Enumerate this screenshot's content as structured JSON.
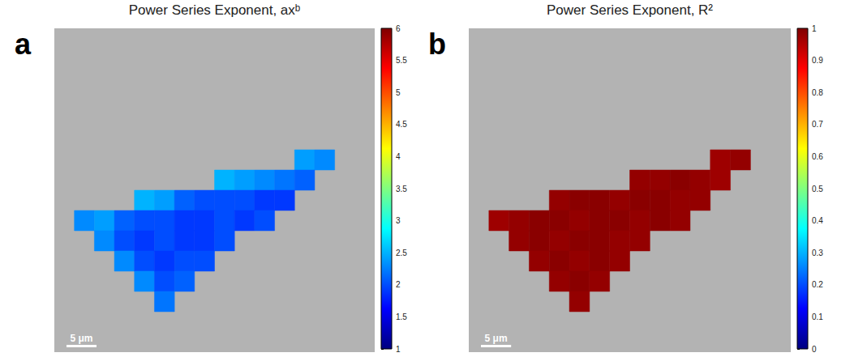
{
  "chart_data": [
    {
      "type": "heatmap",
      "panel": "a",
      "title": "Power Series Exponent, axᵇ",
      "xlim": [
        0,
        53.4
      ],
      "ylim": [
        0,
        53.4
      ],
      "cells": [
        [
          null,
          null,
          null,
          null,
          null,
          null,
          null,
          null,
          null,
          null,
          null,
          null,
          null,
          null,
          null,
          null
        ],
        [
          null,
          null,
          null,
          null,
          null,
          null,
          null,
          null,
          null,
          null,
          null,
          null,
          null,
          null,
          null,
          null
        ],
        [
          null,
          null,
          null,
          null,
          null,
          null,
          null,
          null,
          null,
          null,
          null,
          null,
          null,
          null,
          null,
          null
        ],
        [
          null,
          null,
          null,
          null,
          null,
          null,
          null,
          null,
          null,
          null,
          null,
          null,
          null,
          null,
          null,
          null
        ],
        [
          null,
          null,
          null,
          null,
          null,
          null,
          null,
          null,
          null,
          null,
          null,
          null,
          null,
          null,
          null,
          null
        ],
        [
          null,
          null,
          null,
          null,
          null,
          null,
          null,
          null,
          null,
          null,
          null,
          null,
          null,
          null,
          null,
          null
        ],
        [
          null,
          null,
          null,
          null,
          null,
          null,
          null,
          null,
          null,
          null,
          null,
          null,
          2.4,
          2.3,
          null,
          null
        ],
        [
          null,
          null,
          null,
          null,
          null,
          null,
          null,
          null,
          2.5,
          2.4,
          2.3,
          2.2,
          2.1,
          null,
          null,
          null
        ],
        [
          null,
          null,
          null,
          null,
          2.5,
          2.4,
          2.1,
          2.0,
          2.0,
          2.0,
          1.9,
          1.9,
          null,
          null,
          null,
          null
        ],
        [
          null,
          2.3,
          2.4,
          2.1,
          2.0,
          2.0,
          1.9,
          1.9,
          2.0,
          1.9,
          2.0,
          null,
          null,
          null,
          null,
          null
        ],
        [
          null,
          null,
          2.3,
          2.0,
          1.9,
          2.0,
          1.9,
          1.9,
          2.0,
          null,
          null,
          null,
          null,
          null,
          null,
          null
        ],
        [
          null,
          null,
          null,
          2.3,
          2.0,
          1.9,
          2.0,
          2.0,
          null,
          null,
          null,
          null,
          null,
          null,
          null,
          null
        ],
        [
          null,
          null,
          null,
          null,
          2.3,
          2.0,
          2.1,
          null,
          null,
          null,
          null,
          null,
          null,
          null,
          null,
          null
        ],
        [
          null,
          null,
          null,
          null,
          null,
          2.2,
          null,
          null,
          null,
          null,
          null,
          null,
          null,
          null,
          null,
          null
        ],
        [
          null,
          null,
          null,
          null,
          null,
          null,
          null,
          null,
          null,
          null,
          null,
          null,
          null,
          null,
          null,
          null
        ],
        [
          null,
          null,
          null,
          null,
          null,
          null,
          null,
          null,
          null,
          null,
          null,
          null,
          null,
          null,
          null,
          null
        ]
      ],
      "color_range": [
        1,
        6
      ],
      "color_ticks": [
        1,
        1.5,
        2,
        2.5,
        3,
        3.5,
        4,
        4.5,
        5,
        5.5,
        6
      ],
      "scale_bar": {
        "length": 5,
        "label": "5 μm"
      }
    },
    {
      "type": "heatmap",
      "panel": "b",
      "title": "Power Series Exponent, R²",
      "xlim": [
        0,
        53.4
      ],
      "ylim": [
        0,
        53.4
      ],
      "cells": [
        [
          null,
          null,
          null,
          null,
          null,
          null,
          null,
          null,
          null,
          null,
          null,
          null,
          null,
          null,
          null,
          null
        ],
        [
          null,
          null,
          null,
          null,
          null,
          null,
          null,
          null,
          null,
          null,
          null,
          null,
          null,
          null,
          null,
          null
        ],
        [
          null,
          null,
          null,
          null,
          null,
          null,
          null,
          null,
          null,
          null,
          null,
          null,
          null,
          null,
          null,
          null
        ],
        [
          null,
          null,
          null,
          null,
          null,
          null,
          null,
          null,
          null,
          null,
          null,
          null,
          null,
          null,
          null,
          null
        ],
        [
          null,
          null,
          null,
          null,
          null,
          null,
          null,
          null,
          null,
          null,
          null,
          null,
          null,
          null,
          null,
          null
        ],
        [
          null,
          null,
          null,
          null,
          null,
          null,
          null,
          null,
          null,
          null,
          null,
          null,
          null,
          null,
          null,
          null
        ],
        [
          null,
          null,
          null,
          null,
          null,
          null,
          null,
          null,
          null,
          null,
          null,
          null,
          0.97,
          0.98,
          null,
          null
        ],
        [
          null,
          null,
          null,
          null,
          null,
          null,
          null,
          null,
          0.98,
          0.98,
          0.99,
          0.98,
          0.97,
          null,
          null,
          null
        ],
        [
          null,
          null,
          null,
          null,
          0.98,
          0.99,
          0.99,
          0.98,
          0.99,
          0.99,
          0.98,
          0.98,
          null,
          null,
          null,
          null
        ],
        [
          null,
          0.97,
          0.98,
          0.99,
          0.99,
          0.98,
          0.99,
          0.99,
          0.98,
          0.99,
          0.98,
          null,
          null,
          null,
          null,
          null
        ],
        [
          null,
          null,
          0.98,
          0.99,
          0.98,
          0.99,
          0.99,
          0.98,
          0.98,
          null,
          null,
          null,
          null,
          null,
          null,
          null
        ],
        [
          null,
          null,
          null,
          0.98,
          0.99,
          0.98,
          0.99,
          0.98,
          null,
          null,
          null,
          null,
          null,
          null,
          null,
          null
        ],
        [
          null,
          null,
          null,
          null,
          0.98,
          0.99,
          0.98,
          null,
          null,
          null,
          null,
          null,
          null,
          null,
          null,
          null
        ],
        [
          null,
          null,
          null,
          null,
          null,
          0.98,
          null,
          null,
          null,
          null,
          null,
          null,
          null,
          null,
          null,
          null
        ],
        [
          null,
          null,
          null,
          null,
          null,
          null,
          null,
          null,
          null,
          null,
          null,
          null,
          null,
          null,
          null,
          null
        ],
        [
          null,
          null,
          null,
          null,
          null,
          null,
          null,
          null,
          null,
          null,
          null,
          null,
          null,
          null,
          null,
          null
        ]
      ],
      "color_range": [
        0,
        1
      ],
      "color_ticks": [
        0,
        0.1,
        0.2,
        0.3,
        0.4,
        0.5,
        0.6,
        0.7,
        0.8,
        0.9,
        1
      ],
      "scale_bar": {
        "length": 5,
        "label": "5 μm"
      }
    }
  ]
}
